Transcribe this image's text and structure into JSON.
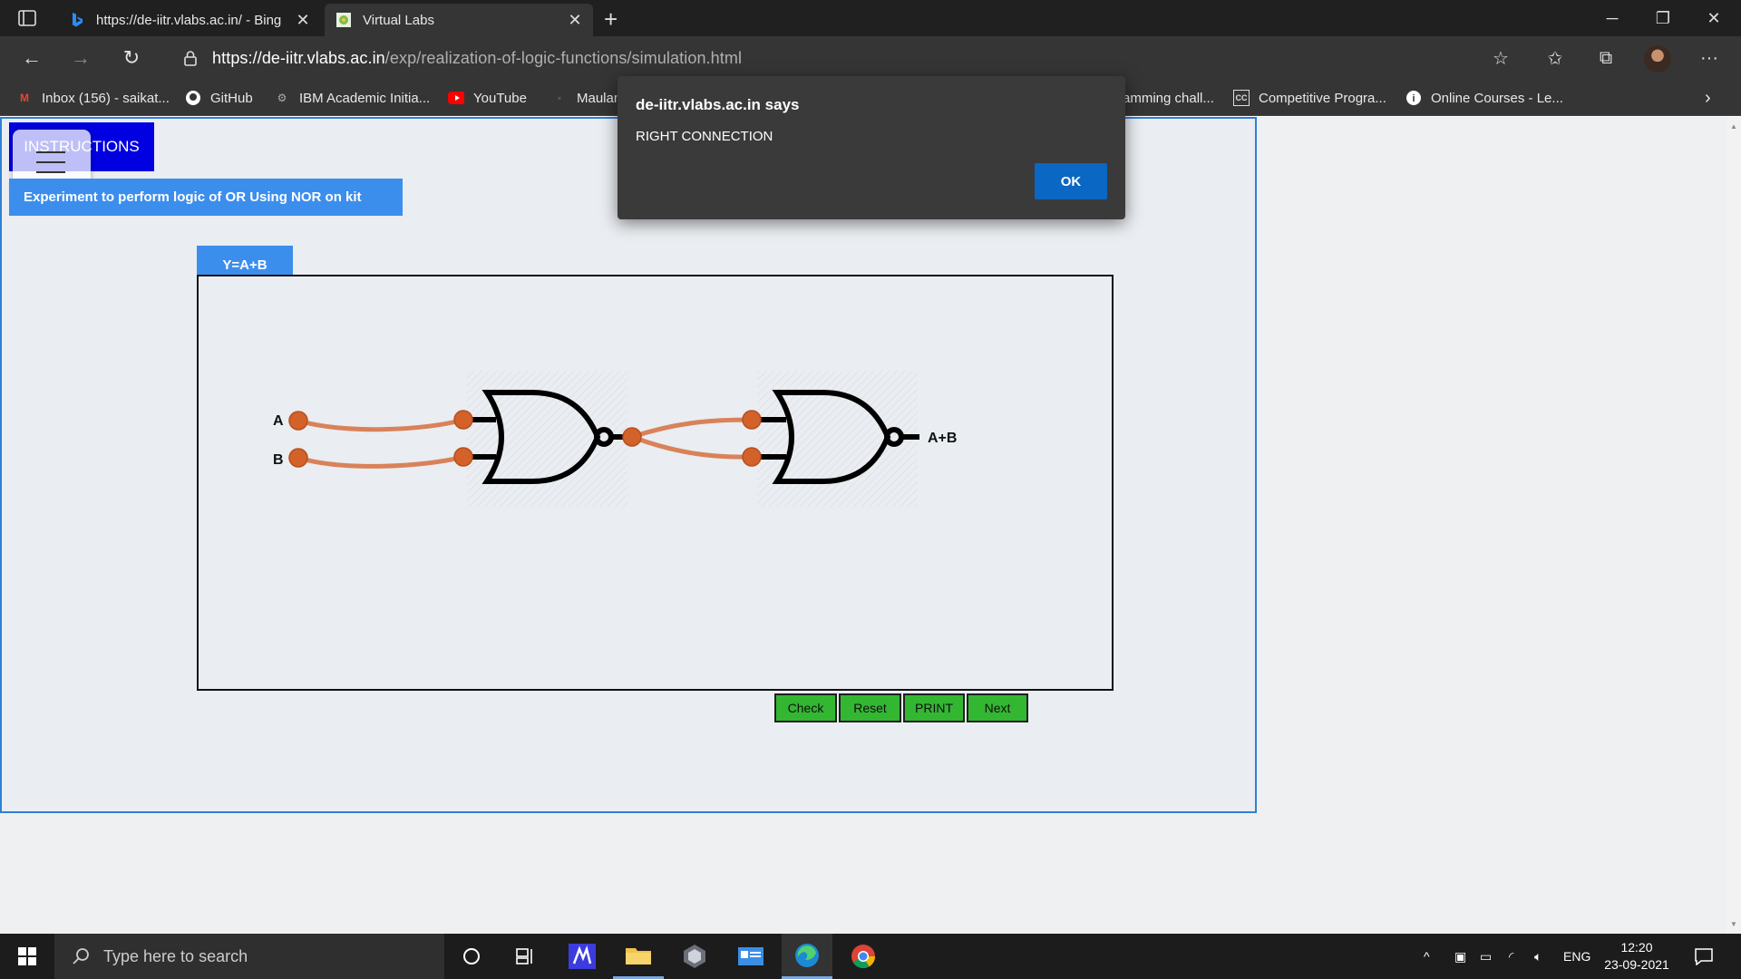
{
  "browser": {
    "tabs": [
      {
        "label": "https://de-iitr.vlabs.ac.in/ - Bing",
        "active": false
      },
      {
        "label": "Virtual Labs",
        "active": true
      }
    ],
    "url_host": "https://de-iitr.vlabs.ac.in",
    "url_path": "/exp/realization-of-logic-functions/simulation.html",
    "bookmarks": [
      {
        "label": "Inbox (156) - saikat..."
      },
      {
        "label": "GitHub"
      },
      {
        "label": "IBM Academic Initia..."
      },
      {
        "label": "YouTube"
      },
      {
        "label": "Maulan"
      },
      {
        "label": "amming chall..."
      },
      {
        "label": "Competitive Progra..."
      },
      {
        "label": "Online Courses - Le..."
      }
    ]
  },
  "page": {
    "instructions_label": "INSTRUCTIONS",
    "experiment_title": "Experiment to perform logic of OR Using NOR on kit",
    "expression_tab": "Y=A+B",
    "circuit": {
      "input_a": "A",
      "input_b": "B",
      "output": "A+B",
      "wire_color": "#d9825a",
      "node_color": "#d2622a"
    },
    "buttons": {
      "check": "Check",
      "reset": "Reset",
      "print": "PRINT",
      "next": "Next"
    }
  },
  "dialog": {
    "title": "de-iitr.vlabs.ac.in says",
    "message": "RIGHT CONNECTION",
    "ok_label": "OK"
  },
  "taskbar": {
    "search_placeholder": "Type here to search",
    "language": "ENG",
    "time": "12:20",
    "date": "23-09-2021"
  }
}
